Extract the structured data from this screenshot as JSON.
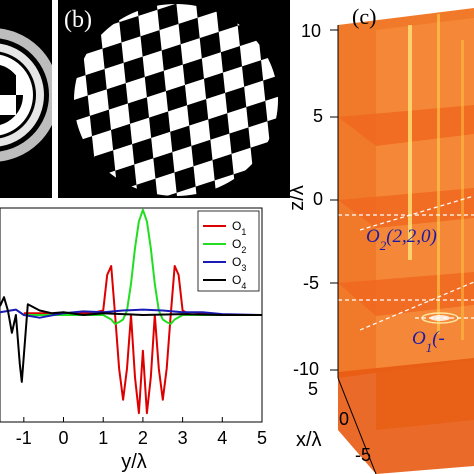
{
  "panels": {
    "a": {
      "label": ""
    },
    "b": {
      "label": "(b)"
    },
    "c": {
      "label": "(c)"
    }
  },
  "chart_data": [
    {
      "type": "line",
      "xlabel": "y/λ",
      "xlim": [
        -1.6,
        5
      ],
      "ylim": [
        -1.2,
        1.2
      ],
      "x_ticks": [
        "-1",
        "0",
        "1",
        "2",
        "3",
        "4",
        "5"
      ],
      "legend": {
        "placement": "top-right",
        "entries": [
          {
            "sym": "O",
            "sub": "1"
          },
          {
            "sym": "O",
            "sub": "2"
          },
          {
            "sym": "O",
            "sub": "3"
          },
          {
            "sym": "O",
            "sub": "4"
          }
        ]
      },
      "series": [
        {
          "name": "O1",
          "color": "#dd0000",
          "x": [
            -1.0,
            -0.5,
            0.0,
            0.5,
            0.8,
            1.0,
            1.1,
            1.2,
            1.3,
            1.4,
            1.5,
            1.6,
            1.7,
            1.8,
            1.9,
            2.0,
            2.1,
            2.2,
            2.3,
            2.4,
            2.5,
            2.6,
            2.7,
            2.8,
            2.9,
            3.0,
            3.2,
            3.5,
            4.0,
            4.5,
            5.0
          ],
          "y": [
            0.02,
            0.02,
            0.0,
            0.02,
            0.03,
            0.05,
            0.45,
            0.55,
            0.0,
            -0.6,
            -0.95,
            -0.6,
            0.0,
            -0.7,
            -1.1,
            -0.4,
            -1.1,
            -0.7,
            0.0,
            -0.6,
            -0.95,
            -0.6,
            0.0,
            0.55,
            0.45,
            0.05,
            0.0,
            0.02,
            0.0,
            0.0,
            0.0
          ]
        },
        {
          "name": "O2",
          "color": "#22dd22",
          "x": [
            -1.0,
            0.0,
            1.0,
            1.2,
            1.3,
            1.4,
            1.5,
            1.6,
            1.7,
            1.8,
            1.9,
            2.0,
            2.1,
            2.2,
            2.3,
            2.4,
            2.5,
            2.6,
            2.7,
            2.8,
            3.0,
            3.5,
            4.0,
            5.0
          ],
          "y": [
            0.0,
            0.0,
            0.0,
            -0.05,
            -0.1,
            -0.08,
            -0.05,
            0.05,
            0.35,
            0.75,
            1.05,
            1.18,
            1.05,
            0.75,
            0.35,
            0.05,
            -0.05,
            -0.08,
            -0.1,
            -0.05,
            0.0,
            0.0,
            0.0,
            0.0
          ]
        },
        {
          "name": "O3",
          "color": "#1a1ab4",
          "x": [
            -1.6,
            -1.2,
            -1.0,
            -0.6,
            0.0,
            0.5,
            1.0,
            1.5,
            2.0,
            2.5,
            3.0,
            3.5,
            4.0,
            5.0
          ],
          "y": [
            0.03,
            0.06,
            0.0,
            -0.03,
            0.02,
            0.04,
            0.03,
            0.05,
            0.06,
            0.05,
            0.03,
            0.03,
            0.01,
            0.0
          ]
        },
        {
          "name": "O4",
          "color": "#000000",
          "x": [
            -1.6,
            -1.5,
            -1.4,
            -1.3,
            -1.2,
            -1.1,
            -1.05,
            -0.9,
            -0.6,
            -0.3,
            0.0,
            0.5,
            1.0,
            2.0,
            3.0,
            4.0,
            5.0
          ],
          "y": [
            0.1,
            0.2,
            0.05,
            -0.2,
            0.0,
            -0.55,
            -0.75,
            0.12,
            0.05,
            0.02,
            0.03,
            0.0,
            0.02,
            0.0,
            0.01,
            0.0,
            0.0
          ]
        }
      ]
    },
    {
      "type": "heatmap",
      "description_of_axes": "3D slices",
      "zlabel": "z/λ",
      "xlabel": "x/λ",
      "z_ticks": [
        "10",
        "5",
        "0",
        "-5",
        "-10"
      ],
      "x_ticks": [
        "5",
        "0",
        "-5"
      ],
      "annotations": [
        {
          "base": "O",
          "sub": "2",
          "rest": "(2,2,0)"
        },
        {
          "base": "O",
          "sub": "1",
          "rest": "(-"
        }
      ]
    }
  ]
}
